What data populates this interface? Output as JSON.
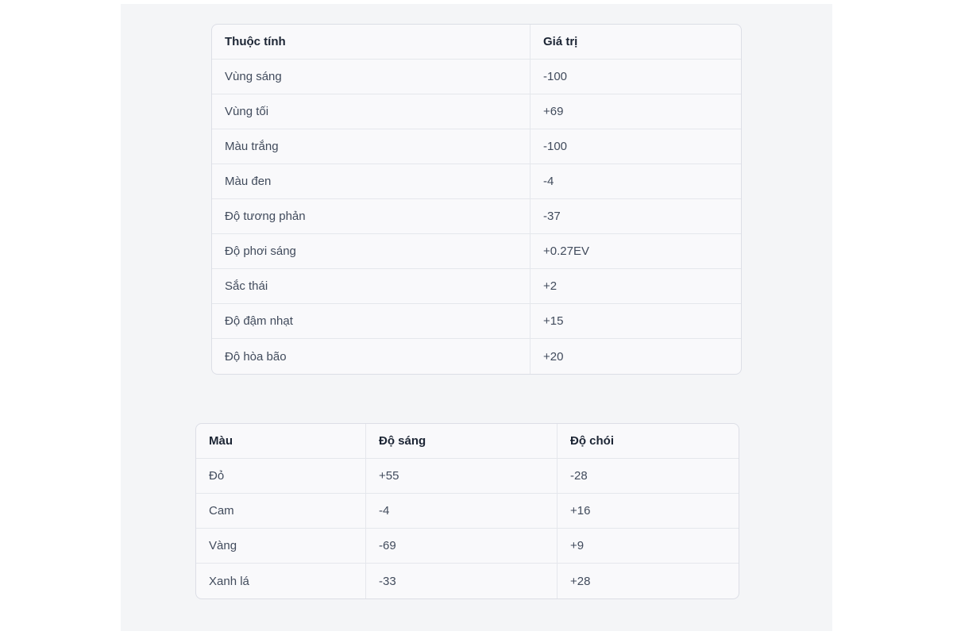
{
  "page": {
    "outer_background": "#ffffff",
    "content_background": "#f4f5f7",
    "card_background": "#f9f9fb",
    "border_color": "#dcdee6",
    "grid_line_color": "#e5e7ec",
    "header_text_color": "#1c2534",
    "body_text_color": "#414b5c"
  },
  "attributes_table": {
    "columns": [
      "Thuộc tính",
      "Giá trị"
    ],
    "rows": [
      [
        "Vùng sáng",
        "-100"
      ],
      [
        "Vùng tối",
        "+69"
      ],
      [
        "Màu trắng",
        "-100"
      ],
      [
        "Màu đen",
        "-4"
      ],
      [
        "Độ tương phản",
        "-37"
      ],
      [
        "Độ phơi sáng",
        "+0.27EV"
      ],
      [
        "Sắc thái",
        "+2"
      ],
      [
        "Độ đậm nhạt",
        "+15"
      ],
      [
        "Độ hòa bão",
        "+20"
      ]
    ]
  },
  "colors_table": {
    "columns": [
      "Màu",
      "Độ sáng",
      "Độ chói"
    ],
    "rows": [
      [
        "Đỏ",
        "+55",
        "-28"
      ],
      [
        "Cam",
        "-4",
        "+16"
      ],
      [
        "Vàng",
        "-69",
        "+9"
      ],
      [
        "Xanh lá",
        "-33",
        "+28"
      ]
    ]
  }
}
